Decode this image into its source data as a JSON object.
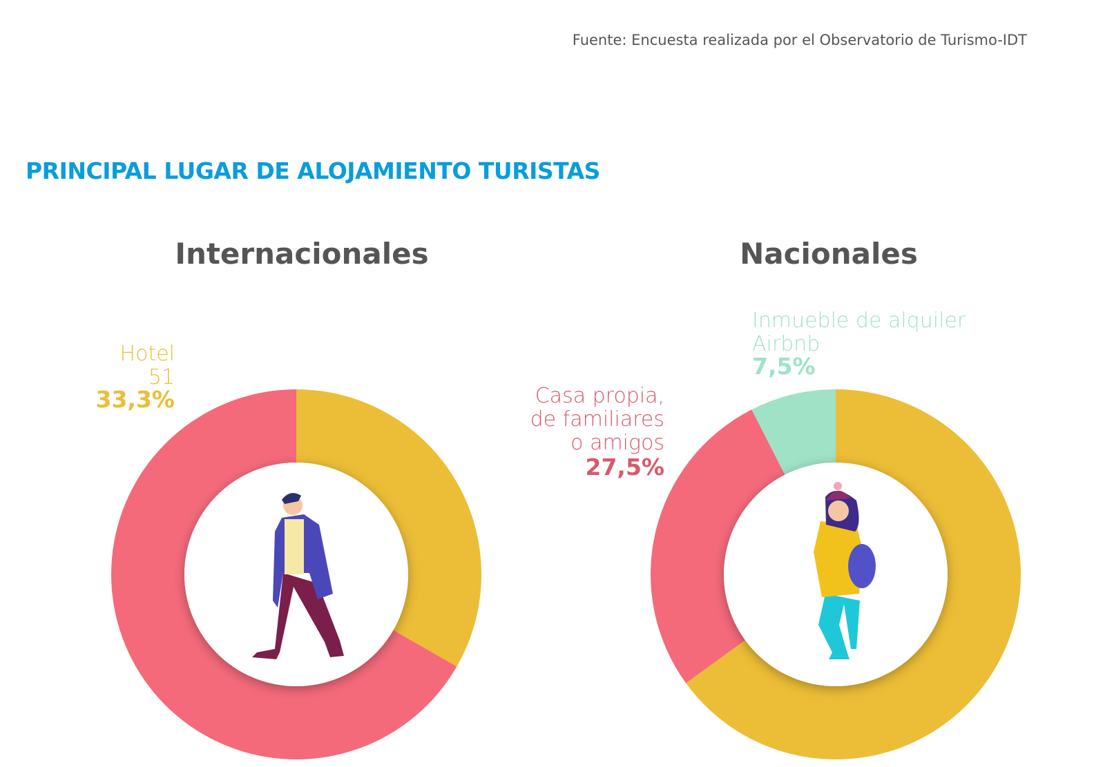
{
  "source": "Fuente: Encuesta realizada por el Observatorio de Turismo-IDT",
  "title": "PRINCIPAL LUGAR DE ALOJAMIENTO TURISTAS",
  "chart_data": [
    {
      "type": "pie",
      "title": "Internacionales",
      "categories": [
        "Hotel",
        null
      ],
      "values": [
        33.3,
        66.7
      ],
      "value_labels": [
        "33,3%",
        null
      ],
      "counts": [
        51,
        null
      ],
      "colors": [
        "#ecbd36",
        "#f46a7b"
      ]
    },
    {
      "type": "pie",
      "title": "Nacionales",
      "categories": [
        null,
        "Casa propia, de familiares o amigos",
        "Inmueble de alquiler Airbnb"
      ],
      "values": [
        65,
        27.5,
        7.5
      ],
      "value_labels": [
        null,
        "27,5%",
        "7,5%"
      ],
      "colors": [
        "#ecbd36",
        "#f46a7b",
        "#a0e2c6"
      ]
    }
  ]
}
